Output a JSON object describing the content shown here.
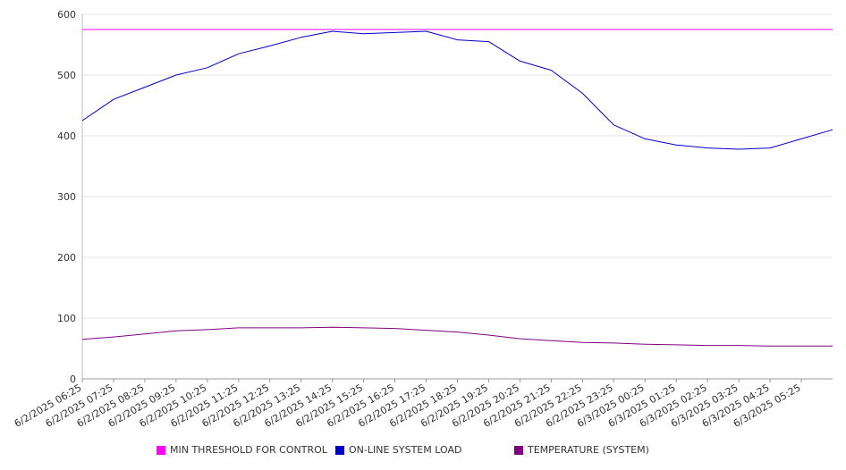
{
  "chart_data": {
    "type": "line",
    "title": "",
    "xlabel": "",
    "ylabel": "",
    "ylim": [
      0,
      600
    ],
    "yticks": [
      0,
      100,
      200,
      300,
      400,
      500,
      600
    ],
    "grid": true,
    "legend_position": "bottom",
    "x_tick_labels": [
      "6/2/2025 06:25",
      "6/2/2025 07:25",
      "6/2/2025 08:25",
      "6/2/2025 09:25",
      "6/2/2025 10:25",
      "6/2/2025 11:25",
      "6/2/2025 12:25",
      "6/2/2025 13:25",
      "6/2/2025 14:25",
      "6/2/2025 15:25",
      "6/2/2025 16:25",
      "6/2/2025 17:25",
      "6/2/2025 18:25",
      "6/2/2025 19:25",
      "6/2/2025 20:25",
      "6/2/2025 21:25",
      "6/2/2025 22:25",
      "6/2/2025 23:25",
      "6/3/2025 00:25",
      "6/3/2025 01:25",
      "6/3/2025 02:25",
      "6/3/2025 03:25",
      "6/3/2025 04:25",
      "6/3/2025 05:25"
    ],
    "x_hours": [
      0,
      1,
      2,
      3,
      4,
      5,
      6,
      7,
      8,
      9,
      10,
      11,
      12,
      13,
      14,
      15,
      16,
      17,
      18,
      19,
      20,
      21,
      22,
      23,
      24
    ],
    "series": [
      {
        "name": "MIN THRESHOLD FOR CONTROL",
        "color": "#ff00ff",
        "values": [
          575,
          575,
          575,
          575,
          575,
          575,
          575,
          575,
          575,
          575,
          575,
          575,
          575,
          575,
          575,
          575,
          575,
          575,
          575,
          575,
          575,
          575,
          575,
          575,
          575
        ]
      },
      {
        "name": "ON-LINE SYSTEM LOAD",
        "color": "#0000cc",
        "values": [
          425,
          460,
          480,
          500,
          512,
          535,
          548,
          562,
          572,
          568,
          570,
          572,
          558,
          555,
          523,
          508,
          470,
          418,
          395,
          385,
          380,
          378,
          380,
          395,
          410
        ]
      },
      {
        "name": "TEMPERATURE (SYSTEM)",
        "color": "#800080",
        "values": [
          65,
          69,
          74,
          79,
          81,
          84,
          84,
          84,
          85,
          84,
          83,
          80,
          77,
          72,
          66,
          63,
          60,
          59,
          57,
          56,
          55,
          55,
          54,
          54,
          54
        ]
      }
    ]
  }
}
